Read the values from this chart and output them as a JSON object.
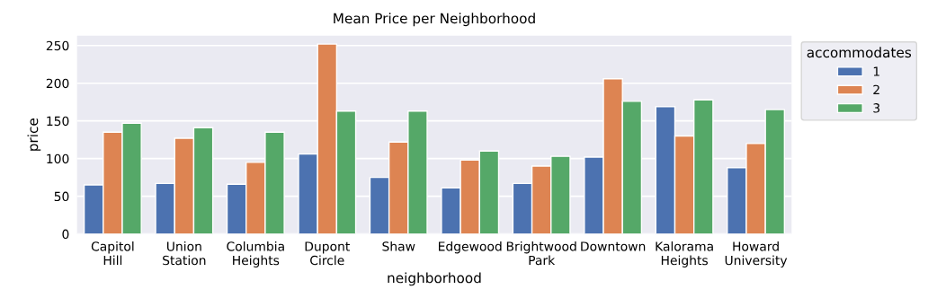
{
  "chart_data": {
    "type": "bar",
    "title": "Mean Price per Neighborhood",
    "xlabel": "neighborhood",
    "ylabel": "price",
    "legend_title": "accommodates",
    "categories": [
      "Capitol Hill",
      "Union Station",
      "Columbia Heights",
      "Dupont Circle",
      "Shaw",
      "Edgewood",
      "Brightwood Park",
      "Downtown",
      "Kalorama Heights",
      "Howard University"
    ],
    "series": [
      {
        "name": "1",
        "color": "#4c72b0",
        "values": [
          65,
          67,
          66,
          106,
          75,
          61,
          67,
          102,
          169,
          88
        ]
      },
      {
        "name": "2",
        "color": "#dd8452",
        "values": [
          135,
          127,
          95,
          252,
          122,
          98,
          90,
          206,
          130,
          120
        ]
      },
      {
        "name": "3",
        "color": "#55a868",
        "values": [
          147,
          141,
          135,
          163,
          163,
          110,
          103,
          176,
          178,
          165
        ]
      }
    ],
    "ylim": [
      0,
      263
    ],
    "yticks": [
      0,
      50,
      100,
      150,
      200,
      250
    ],
    "grid": "y",
    "legend": "top right"
  }
}
